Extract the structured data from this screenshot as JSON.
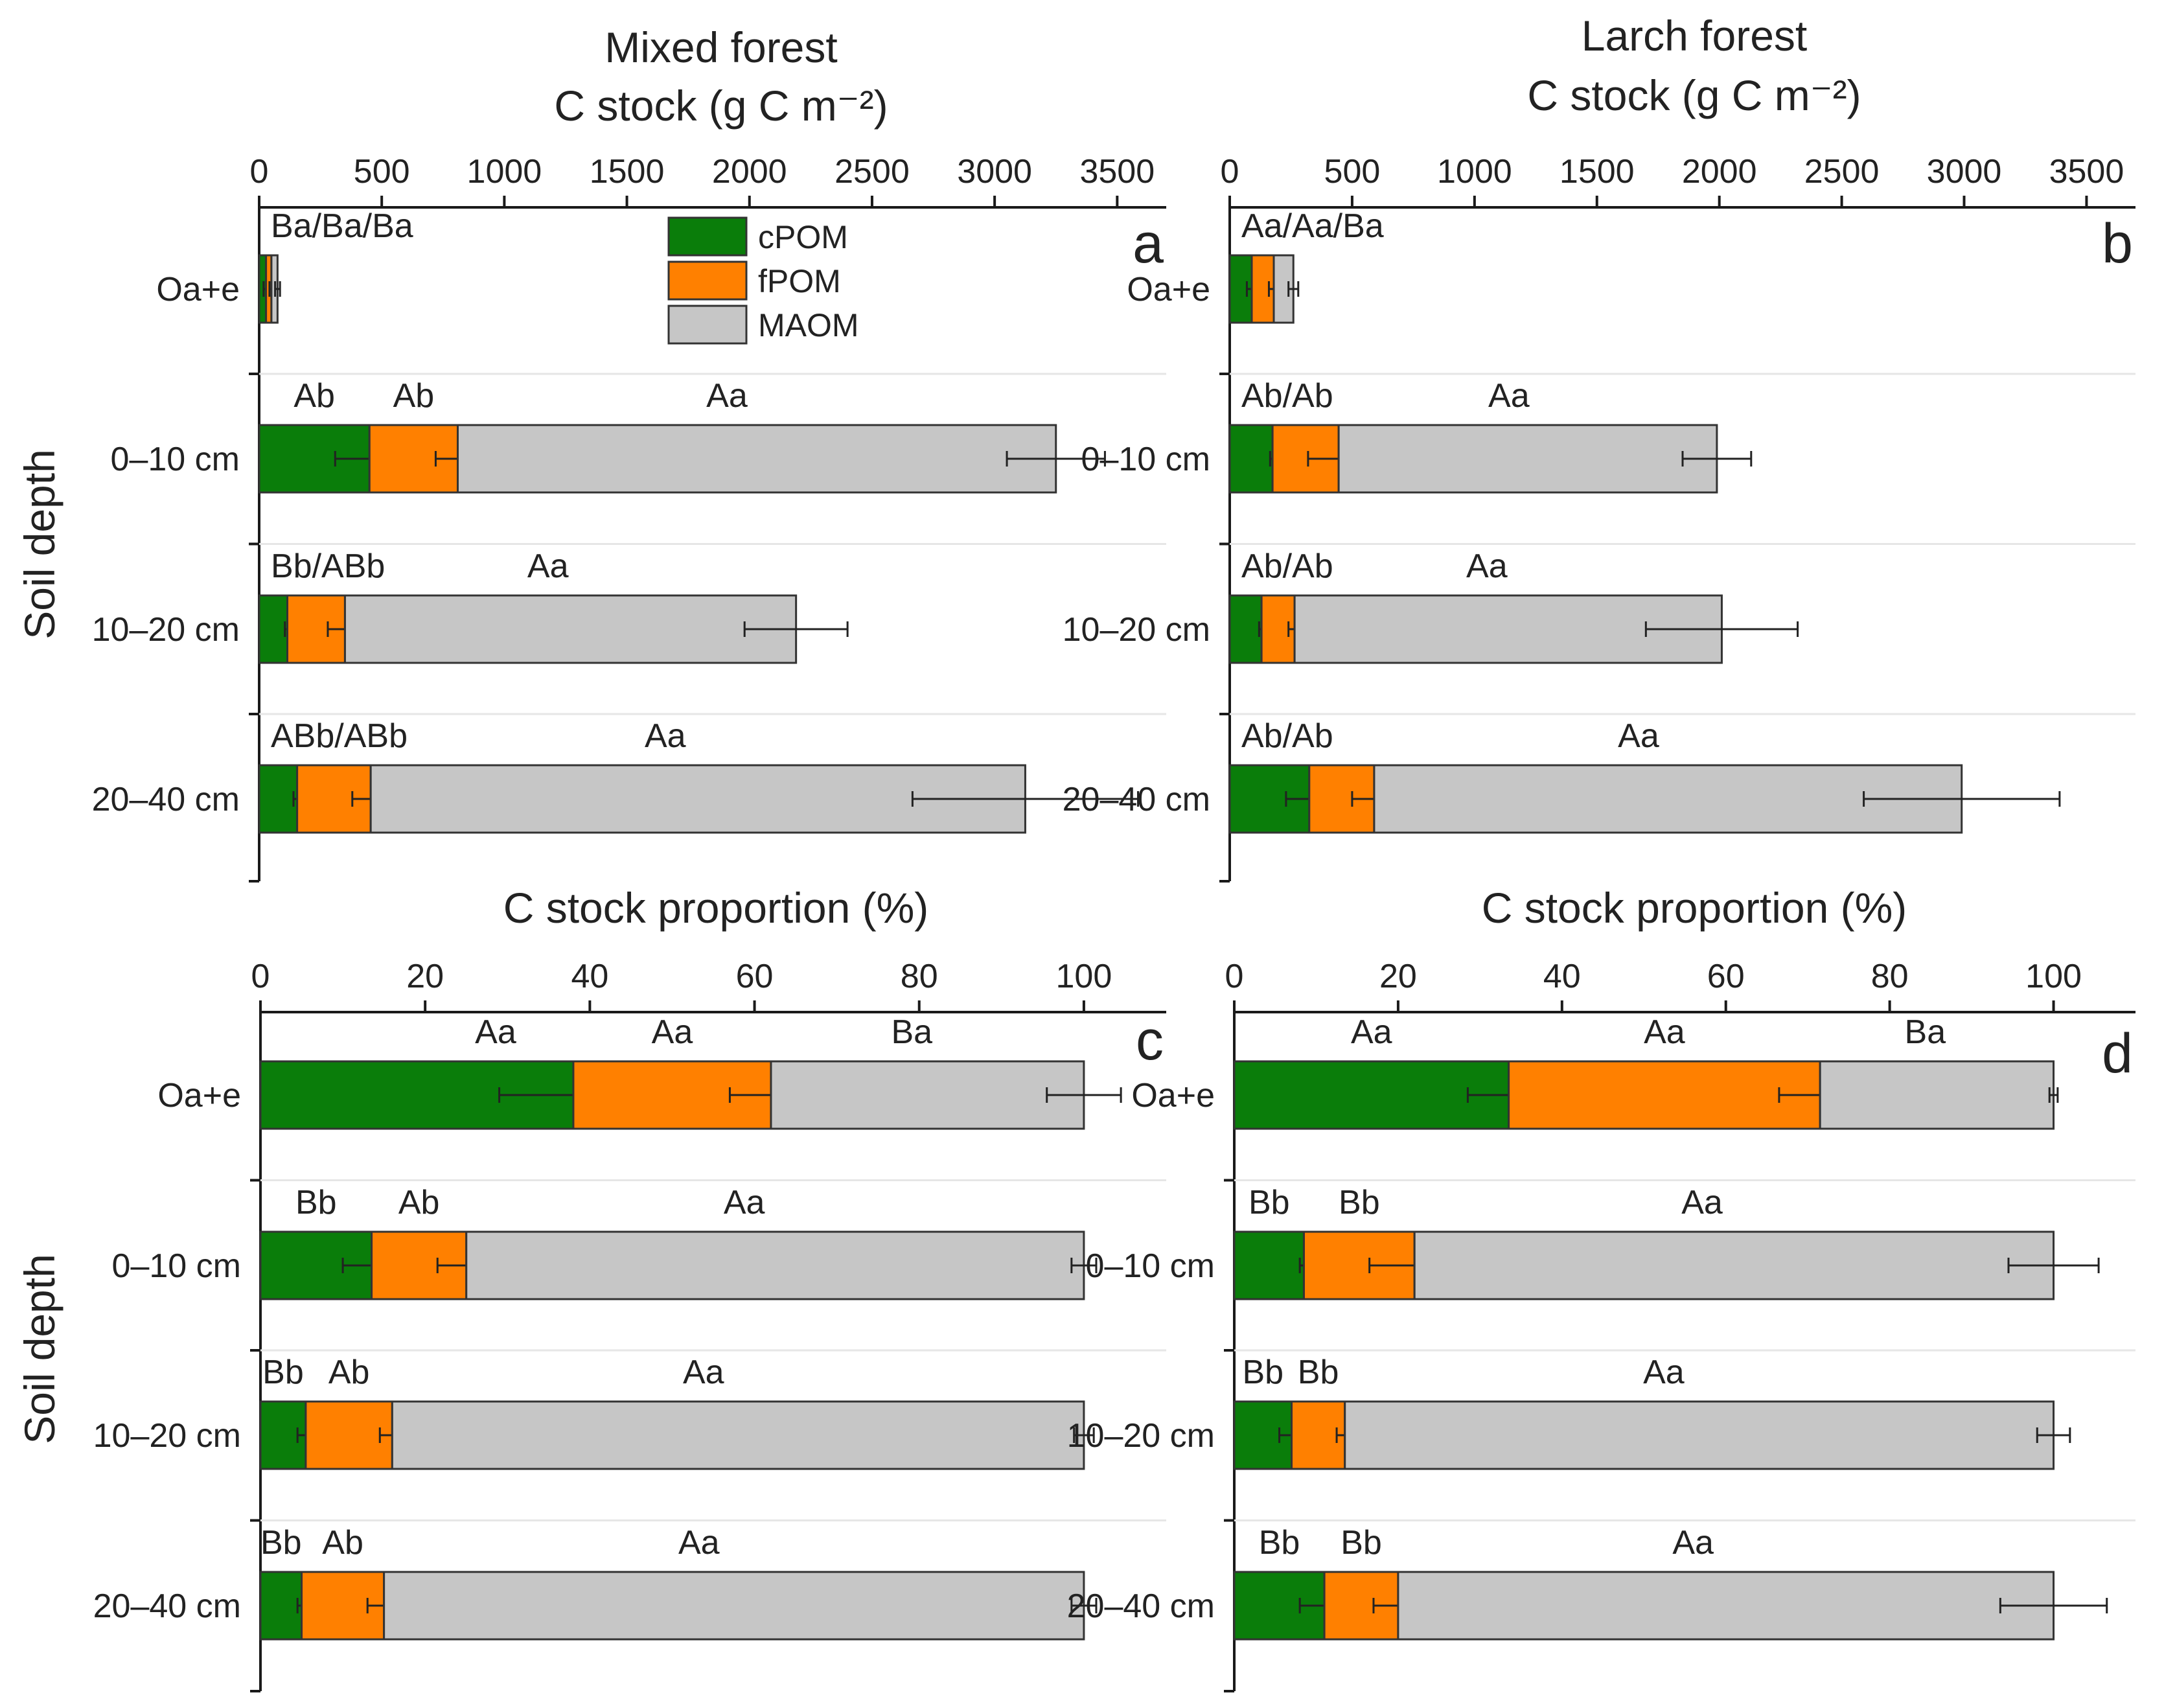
{
  "colors": {
    "cPOM": "#0a7d0a",
    "fPOM": "#ff8000",
    "MAOM": "#c6c6c6"
  },
  "legend": [
    {
      "label": "cPOM",
      "color": "#0a7d0a"
    },
    {
      "label": "fPOM",
      "color": "#ff8000"
    },
    {
      "label": "MAOM",
      "color": "#c6c6c6"
    }
  ],
  "y_axis_label": "Soil depth",
  "chart_data": [
    {
      "panel": "a",
      "title": "Mixed forest",
      "xlabel": "C stock (g C m⁻²)",
      "type": "bar",
      "stacked": true,
      "orientation": "horizontal",
      "xlim": [
        0,
        3700
      ],
      "xticks": [
        0,
        500,
        1000,
        1500,
        2000,
        2500,
        3000,
        3500
      ],
      "categories": [
        "Oa+e",
        "0–10 cm",
        "10–20 cm",
        "20–40 cm"
      ],
      "series": [
        {
          "name": "cPOM",
          "values": [
            28,
            450,
            115,
            155
          ],
          "errors": [
            10,
            140,
            10,
            15
          ]
        },
        {
          "name": "fPOM",
          "values": [
            22,
            360,
            235,
            300
          ],
          "errors": [
            8,
            90,
            70,
            75
          ]
        },
        {
          "name": "MAOM",
          "values": [
            25,
            2440,
            1840,
            2670
          ],
          "errors": [
            10,
            200,
            210,
            460
          ]
        }
      ],
      "annotations": [
        {
          "row": 0,
          "pos": "left",
          "text": "Ba/Ba/Ba"
        },
        {
          "row": 1,
          "seg": 0,
          "text": "Ab"
        },
        {
          "row": 1,
          "seg": 1,
          "text": "Ab"
        },
        {
          "row": 1,
          "seg": 2,
          "text": "Aa"
        },
        {
          "row": 2,
          "pos": "left",
          "text": "Bb/ABb"
        },
        {
          "row": 2,
          "seg": 2,
          "text": "Aa"
        },
        {
          "row": 3,
          "pos": "left",
          "text": "ABb/ABb"
        },
        {
          "row": 3,
          "seg": 2,
          "text": "Aa"
        }
      ]
    },
    {
      "panel": "b",
      "title": "Larch forest",
      "xlabel": "C stock (g C m⁻²)",
      "type": "bar",
      "stacked": true,
      "orientation": "horizontal",
      "xlim": [
        0,
        3700
      ],
      "xticks": [
        0,
        500,
        1000,
        1500,
        2000,
        2500,
        3000,
        3500
      ],
      "categories": [
        "Oa+e",
        "0–10 cm",
        "10–20 cm",
        "20–40 cm"
      ],
      "series": [
        {
          "name": "cPOM",
          "values": [
            90,
            175,
            130,
            325
          ],
          "errors": [
            20,
            10,
            10,
            95
          ]
        },
        {
          "name": "fPOM",
          "values": [
            90,
            270,
            135,
            265
          ],
          "errors": [
            20,
            125,
            25,
            90
          ]
        },
        {
          "name": "MAOM",
          "values": [
            80,
            1545,
            1745,
            2400
          ],
          "errors": [
            20,
            140,
            310,
            400
          ]
        }
      ],
      "annotations": [
        {
          "row": 0,
          "pos": "left",
          "text": "Aa/Aa/Ba"
        },
        {
          "row": 1,
          "pos": "left",
          "text": "Ab/Ab"
        },
        {
          "row": 1,
          "seg": 2,
          "text": "Aa"
        },
        {
          "row": 2,
          "pos": "left",
          "text": "Ab/Ab"
        },
        {
          "row": 2,
          "seg": 2,
          "text": "Aa"
        },
        {
          "row": 3,
          "pos": "left",
          "text": "Ab/Ab"
        },
        {
          "row": 3,
          "seg": 2,
          "text": "Aa"
        }
      ]
    },
    {
      "panel": "c",
      "title": "",
      "xlabel": "C stock proportion (%)",
      "type": "bar",
      "stacked": true,
      "orientation": "horizontal",
      "xlim": [
        0,
        110
      ],
      "xticks": [
        0,
        20,
        40,
        60,
        80,
        100
      ],
      "categories": [
        "Oa+e",
        "0–10 cm",
        "10–20 cm",
        "20–40 cm"
      ],
      "series": [
        {
          "name": "cPOM",
          "values": [
            38,
            13.5,
            5.5,
            5
          ],
          "errors": [
            9,
            3.5,
            1,
            0.5
          ]
        },
        {
          "name": "fPOM",
          "values": [
            24,
            11.5,
            10.5,
            10
          ],
          "errors": [
            5,
            3.5,
            1.5,
            2
          ]
        },
        {
          "name": "MAOM",
          "values": [
            38,
            75,
            84,
            85
          ],
          "errors": [
            4.5,
            1.5,
            1.2,
            1.5
          ]
        }
      ],
      "annotations": [
        {
          "row": 0,
          "seg": 0,
          "pos": "end",
          "text": "Aa"
        },
        {
          "row": 0,
          "seg": 1,
          "text": "Aa"
        },
        {
          "row": 0,
          "seg": 2,
          "text": "Ba"
        },
        {
          "row": 1,
          "seg": 0,
          "text": "Bb"
        },
        {
          "row": 1,
          "seg": 1,
          "text": "Ab"
        },
        {
          "row": 1,
          "seg": 2,
          "text": "Aa"
        },
        {
          "row": 2,
          "seg": 0,
          "text": "Bb"
        },
        {
          "row": 2,
          "seg": 1,
          "text": "Ab"
        },
        {
          "row": 2,
          "seg": 2,
          "text": "Aa"
        },
        {
          "row": 3,
          "seg": 0,
          "text": "Bb"
        },
        {
          "row": 3,
          "seg": 1,
          "text": "Ab"
        },
        {
          "row": 3,
          "seg": 2,
          "text": "Aa"
        }
      ]
    },
    {
      "panel": "d",
      "title": "",
      "xlabel": "C stock proportion (%)",
      "type": "bar",
      "stacked": true,
      "orientation": "horizontal",
      "xlim": [
        0,
        110
      ],
      "xticks": [
        0,
        20,
        40,
        60,
        80,
        100
      ],
      "categories": [
        "Oa+e",
        "0–10 cm",
        "10–20 cm",
        "20–40 cm"
      ],
      "series": [
        {
          "name": "cPOM",
          "values": [
            33.5,
            8.5,
            7,
            11
          ],
          "errors": [
            5,
            0.5,
            1.5,
            3
          ]
        },
        {
          "name": "fPOM",
          "values": [
            38,
            13.5,
            6.5,
            9
          ],
          "errors": [
            5,
            5.5,
            1,
            3
          ]
        },
        {
          "name": "MAOM",
          "values": [
            28.5,
            78,
            86.5,
            80
          ],
          "errors": [
            0.5,
            5.5,
            2,
            6.5
          ]
        }
      ],
      "annotations": [
        {
          "row": 0,
          "seg": 0,
          "text": "Aa"
        },
        {
          "row": 0,
          "seg": 1,
          "text": "Aa"
        },
        {
          "row": 0,
          "seg": 2,
          "text": "Ba"
        },
        {
          "row": 1,
          "seg": 0,
          "text": "Bb"
        },
        {
          "row": 1,
          "seg": 1,
          "text": "Bb"
        },
        {
          "row": 1,
          "seg": 2,
          "text": "Aa"
        },
        {
          "row": 2,
          "seg": 0,
          "text": "Bb"
        },
        {
          "row": 2,
          "seg": 1,
          "text": "Bb"
        },
        {
          "row": 2,
          "seg": 2,
          "text": "Aa"
        },
        {
          "row": 3,
          "seg": 0,
          "text": "Bb"
        },
        {
          "row": 3,
          "seg": 1,
          "text": "Bb"
        },
        {
          "row": 3,
          "seg": 2,
          "text": "Aa"
        }
      ]
    }
  ]
}
